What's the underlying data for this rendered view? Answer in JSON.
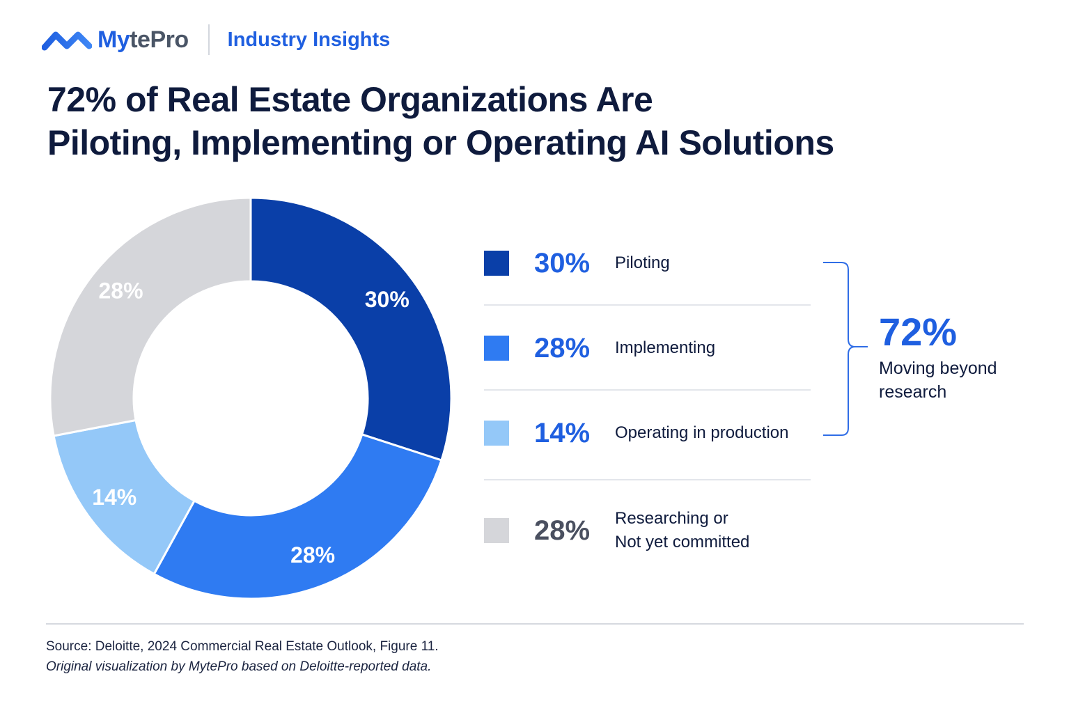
{
  "brand": {
    "name_part1": "My",
    "name_part2": "tePro",
    "section": "Industry Insights"
  },
  "title_line1": "72% of Real Estate Organizations Are",
  "title_line2": "Piloting, Implementing or Operating AI Solutions",
  "chart_data": {
    "type": "pie",
    "title": "72% of Real Estate Organizations Are Piloting, Implementing or Operating AI Solutions",
    "slices": [
      {
        "label": "Piloting",
        "value": 30,
        "display": "30%",
        "color": "#0a3fa8",
        "label_color": "#ffffff"
      },
      {
        "label": "Implementing",
        "value": 28,
        "display": "28%",
        "color": "#2f7bf2",
        "label_color": "#ffffff"
      },
      {
        "label": "Operating in production",
        "value": 14,
        "display": "14%",
        "color": "#94c8f8",
        "label_color": "#ffffff"
      },
      {
        "label": "Researching or Not yet committed",
        "value": 28,
        "display": "28%",
        "color": "#d5d6da",
        "label_color": "#ffffff"
      }
    ],
    "legend_placement": "right",
    "aggregate": {
      "value": "72%",
      "label": "Moving beyond research"
    }
  },
  "legend": [
    {
      "pct": "30%",
      "label_lines": [
        "Piloting"
      ],
      "swatch": "#0a3fa8",
      "pct_color": "#1f5fe0"
    },
    {
      "pct": "28%",
      "label_lines": [
        "Implementing"
      ],
      "swatch": "#2f7bf2",
      "pct_color": "#1f5fe0"
    },
    {
      "pct": "14%",
      "label_lines": [
        "Operating in production"
      ],
      "swatch": "#94c8f8",
      "pct_color": "#1f5fe0"
    },
    {
      "pct": "28%",
      "label_lines": [
        "Researching or",
        "Not yet committed"
      ],
      "swatch": "#d5d6da",
      "pct_color": "#4a5060"
    }
  ],
  "aggregate_value": "72%",
  "aggregate_label": "Moving beyond research",
  "source": "Source: Deloitte, 2024 Commercial Real Estate Outlook, Figure 11.",
  "credit": "Original visualization by MytePro based on Deloitte-reported data."
}
